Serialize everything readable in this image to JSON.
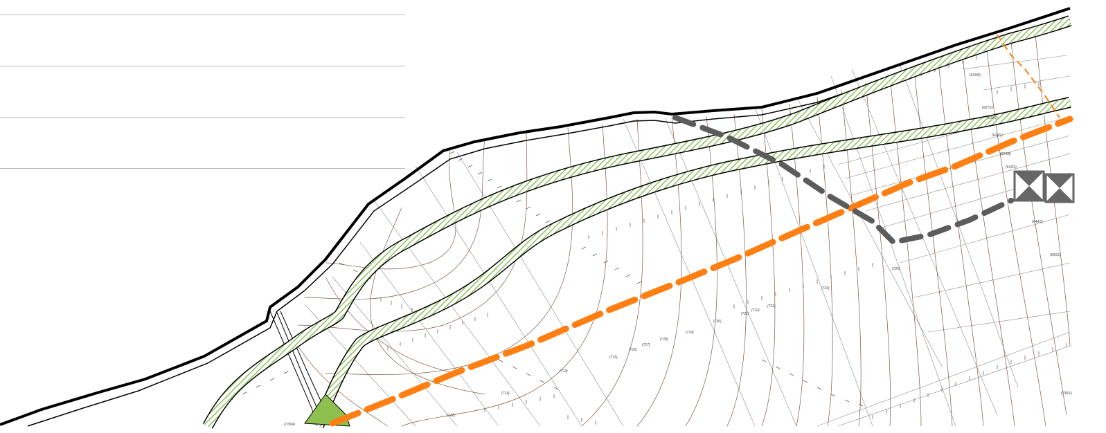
{
  "map": {
    "type": "cadastral-plan",
    "colors": {
      "background": "#ffffff",
      "boundary": "#000000",
      "contour": "#7a5a44",
      "grid": "#8a8a8a",
      "green_band": "#8cc05a",
      "green_fill": "#8dc04f",
      "orange_route": "#ff7f12",
      "gray_route": "#5c5c5c",
      "legend_rule": "#b9b9b9",
      "symbol": "#666666"
    },
    "features": {
      "boundary": "thick-black-polyline",
      "green_bands": "hatched-green-strips",
      "orange_route": "dashed-orange-line",
      "gray_route": "dashed-gray-line",
      "contours": "thin-brown-lines",
      "tick_marks": "survey-ticks",
      "symbols": "crossed-box-icons"
    },
    "parcel_labels": [
      "(628/8)",
      "(627/1)",
      "(626/1)",
      "(624/1)",
      "(624/8)",
      "(643/1)",
      "(644/1)",
      "(665/1)",
      "(725)",
      "(724)",
      "(723)",
      "(722)",
      "(721)",
      "(720)",
      "(719)",
      "(718)",
      "(717)",
      "(716)",
      "(715)",
      "(713)",
      "(714)",
      "(712)",
      "(727)",
      "(728)",
      "(726)",
      "(719/4)",
      "(730/1)"
    ]
  }
}
